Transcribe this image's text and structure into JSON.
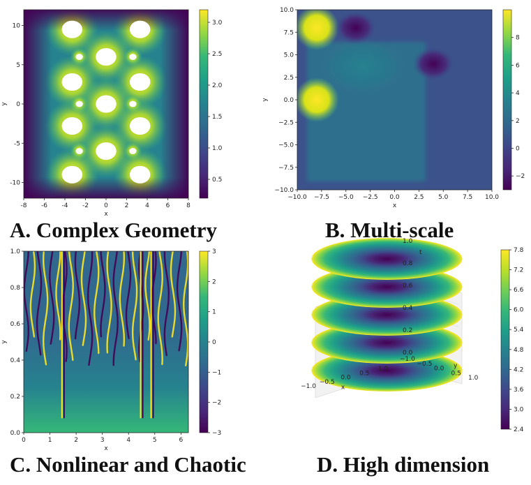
{
  "colors": {
    "viridis": [
      "#440154",
      "#482878",
      "#3e4989",
      "#31688e",
      "#26828e",
      "#1f9e89",
      "#35b779",
      "#6ece58",
      "#b5de2b",
      "#fde725"
    ],
    "hole": "#ffffff",
    "axis": "#222222"
  },
  "captions": {
    "a": "A. Complex Geometry",
    "b": "B. Multi-scale",
    "c": "C. Nonlinear and Chaotic",
    "d": "D. High dimension"
  },
  "chart_data": [
    {
      "type": "heatmap",
      "id": "a",
      "xlabel": "x",
      "ylabel": "y",
      "xlim": [
        -8,
        8
      ],
      "ylim": [
        -12,
        12
      ],
      "xticks": [
        -8,
        -6,
        -4,
        -2,
        0,
        2,
        4,
        6,
        8
      ],
      "yticks": [
        -10,
        -5,
        0,
        5,
        10
      ],
      "colorbar": {
        "range": [
          0.2,
          3.2
        ],
        "ticks": [
          "0.5",
          "1.0",
          "1.5",
          "2.0",
          "2.5",
          "3.0"
        ],
        "tick_values": [
          0.5,
          1.0,
          1.5,
          2.0,
          2.5,
          3.0
        ]
      },
      "holes": [
        {
          "x": -3.3,
          "y": 9.5,
          "r": 1.0
        },
        {
          "x": 3.3,
          "y": 9.5,
          "r": 1.0
        },
        {
          "x": -2.6,
          "y": 6.0,
          "r": 0.35
        },
        {
          "x": 0,
          "y": 6.0,
          "r": 1.0
        },
        {
          "x": 2.6,
          "y": 6.0,
          "r": 0.35
        },
        {
          "x": -3.3,
          "y": 2.8,
          "r": 1.0
        },
        {
          "x": 3.3,
          "y": 2.8,
          "r": 1.0
        },
        {
          "x": -2.6,
          "y": 0,
          "r": 0.35
        },
        {
          "x": 0,
          "y": 0,
          "r": 1.0
        },
        {
          "x": 2.6,
          "y": 0,
          "r": 0.35
        },
        {
          "x": -3.3,
          "y": -2.8,
          "r": 1.0
        },
        {
          "x": 3.3,
          "y": -2.8,
          "r": 1.0
        },
        {
          "x": -2.6,
          "y": -6.0,
          "r": 0.35
        },
        {
          "x": 0,
          "y": -6.0,
          "r": 1.0
        },
        {
          "x": 2.6,
          "y": -6.0,
          "r": 0.35
        },
        {
          "x": -3.3,
          "y": -9.0,
          "r": 1.0
        },
        {
          "x": 3.3,
          "y": -9.0,
          "r": 1.0
        }
      ]
    },
    {
      "type": "heatmap",
      "id": "b",
      "xlabel": "x",
      "ylabel": "y",
      "xlim": [
        -10,
        10
      ],
      "ylim": [
        -10,
        10
      ],
      "xticks": [
        "−10.0",
        "−7.5",
        "−5.0",
        "−2.5",
        "0.0",
        "2.5",
        "5.0",
        "7.5",
        "10.0"
      ],
      "yticks": [
        "−10.0",
        "−7.5",
        "−5.0",
        "−2.5",
        "0.0",
        "2.5",
        "5.0",
        "7.5",
        "10.0"
      ],
      "colorbar": {
        "range": [
          -3,
          10
        ],
        "ticks": [
          "−2",
          "0",
          "2",
          "4",
          "6",
          "8"
        ],
        "tick_values": [
          -2,
          0,
          2,
          4,
          6,
          8
        ]
      },
      "features": [
        {
          "x": -8,
          "y": 8,
          "value": 9.5
        },
        {
          "x": -8,
          "y": 0,
          "value": 8.5
        },
        {
          "x": -4,
          "y": 8,
          "value": -2.0
        },
        {
          "x": 4,
          "y": 4,
          "value": -3.0
        }
      ]
    },
    {
      "type": "heatmap",
      "id": "c",
      "xlabel": "x",
      "ylabel": "y",
      "xlim": [
        0,
        6.2832
      ],
      "ylim": [
        0,
        1
      ],
      "xticks": [
        0,
        1,
        2,
        3,
        4,
        5,
        6
      ],
      "yticks": [
        "0.0",
        "0.2",
        "0.4",
        "0.6",
        "0.8",
        "1.0"
      ],
      "colorbar": {
        "range": [
          -3,
          3
        ],
        "ticks": [
          "−3",
          "−2",
          "−1",
          "0",
          "1",
          "2",
          "3"
        ],
        "tick_values": [
          -3,
          -2,
          -1,
          0,
          1,
          2,
          3
        ]
      },
      "vertical_lines_x": [
        1.5,
        4.5,
        4.9
      ]
    },
    {
      "type": "surface3d",
      "id": "d",
      "xlabel": "x",
      "ylabel": "y",
      "zlabel": "t",
      "x_ticks": [
        "−1.0",
        "−0.5",
        "0.0",
        "0.5",
        "1.0"
      ],
      "y_ticks": [
        "−1.0",
        "−0.5",
        "0.0",
        "0.5",
        "1.0"
      ],
      "t_ticks": [
        "0.0",
        "0.2",
        "0.4",
        "0.6",
        "0.8",
        "1.0"
      ],
      "t_slices": [
        0.0,
        0.25,
        0.5,
        0.75,
        1.0
      ],
      "colorbar": {
        "range": [
          2.4,
          7.8
        ],
        "ticks": [
          "2.4",
          "3.0",
          "3.6",
          "4.2",
          "4.8",
          "5.4",
          "6.0",
          "6.6",
          "7.2",
          "7.8"
        ]
      }
    }
  ]
}
